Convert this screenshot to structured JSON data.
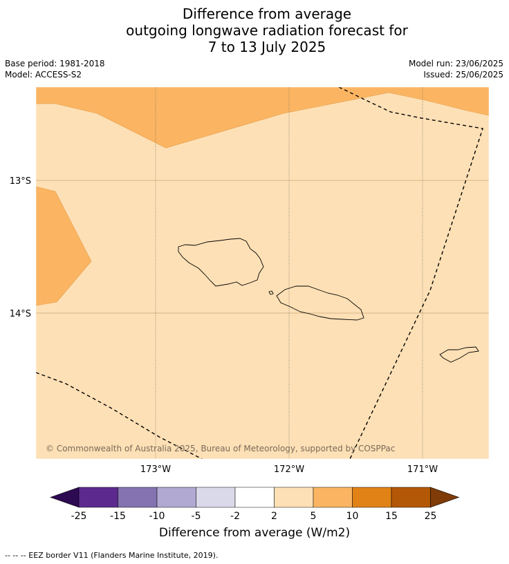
{
  "title_lines": [
    "Difference from average",
    "outgoing longwave radiation forecast for",
    "7 to 13 July 2025"
  ],
  "base_period": "Base period: 1981-2018",
  "model": "Model: ACCESS-S2",
  "model_run": "Model run: 23/06/2025",
  "issued": "Issued: 25/06/2025",
  "lat_labels": [
    "13°S",
    "14°S"
  ],
  "lon_labels": [
    "173°W",
    "172°W",
    "171°W"
  ],
  "copyright": "© Commonwealth of Australia 2025, Bureau of Meteorology, supported by COSPPac",
  "colorbar": {
    "ticks": [
      "-25",
      "-15",
      "-10",
      "-5",
      "-2",
      "2",
      "5",
      "10",
      "15",
      "25"
    ],
    "colors": [
      "#2d0a52",
      "#5c2a8e",
      "#8473b0",
      "#b1a9d2",
      "#d9d9ea",
      "#ffffff",
      "#fde0b5",
      "#fbb562",
      "#e08216",
      "#b35806",
      "#7f3b08"
    ],
    "title": "Difference from average (W/m2)"
  },
  "footnote": "--  --  -- EEZ border V11 (Flanders Marine Institute, 2019).",
  "map_colors": {
    "base": "#fde0b5",
    "anomaly": "#fbb562",
    "grid": "#c8a878"
  }
}
